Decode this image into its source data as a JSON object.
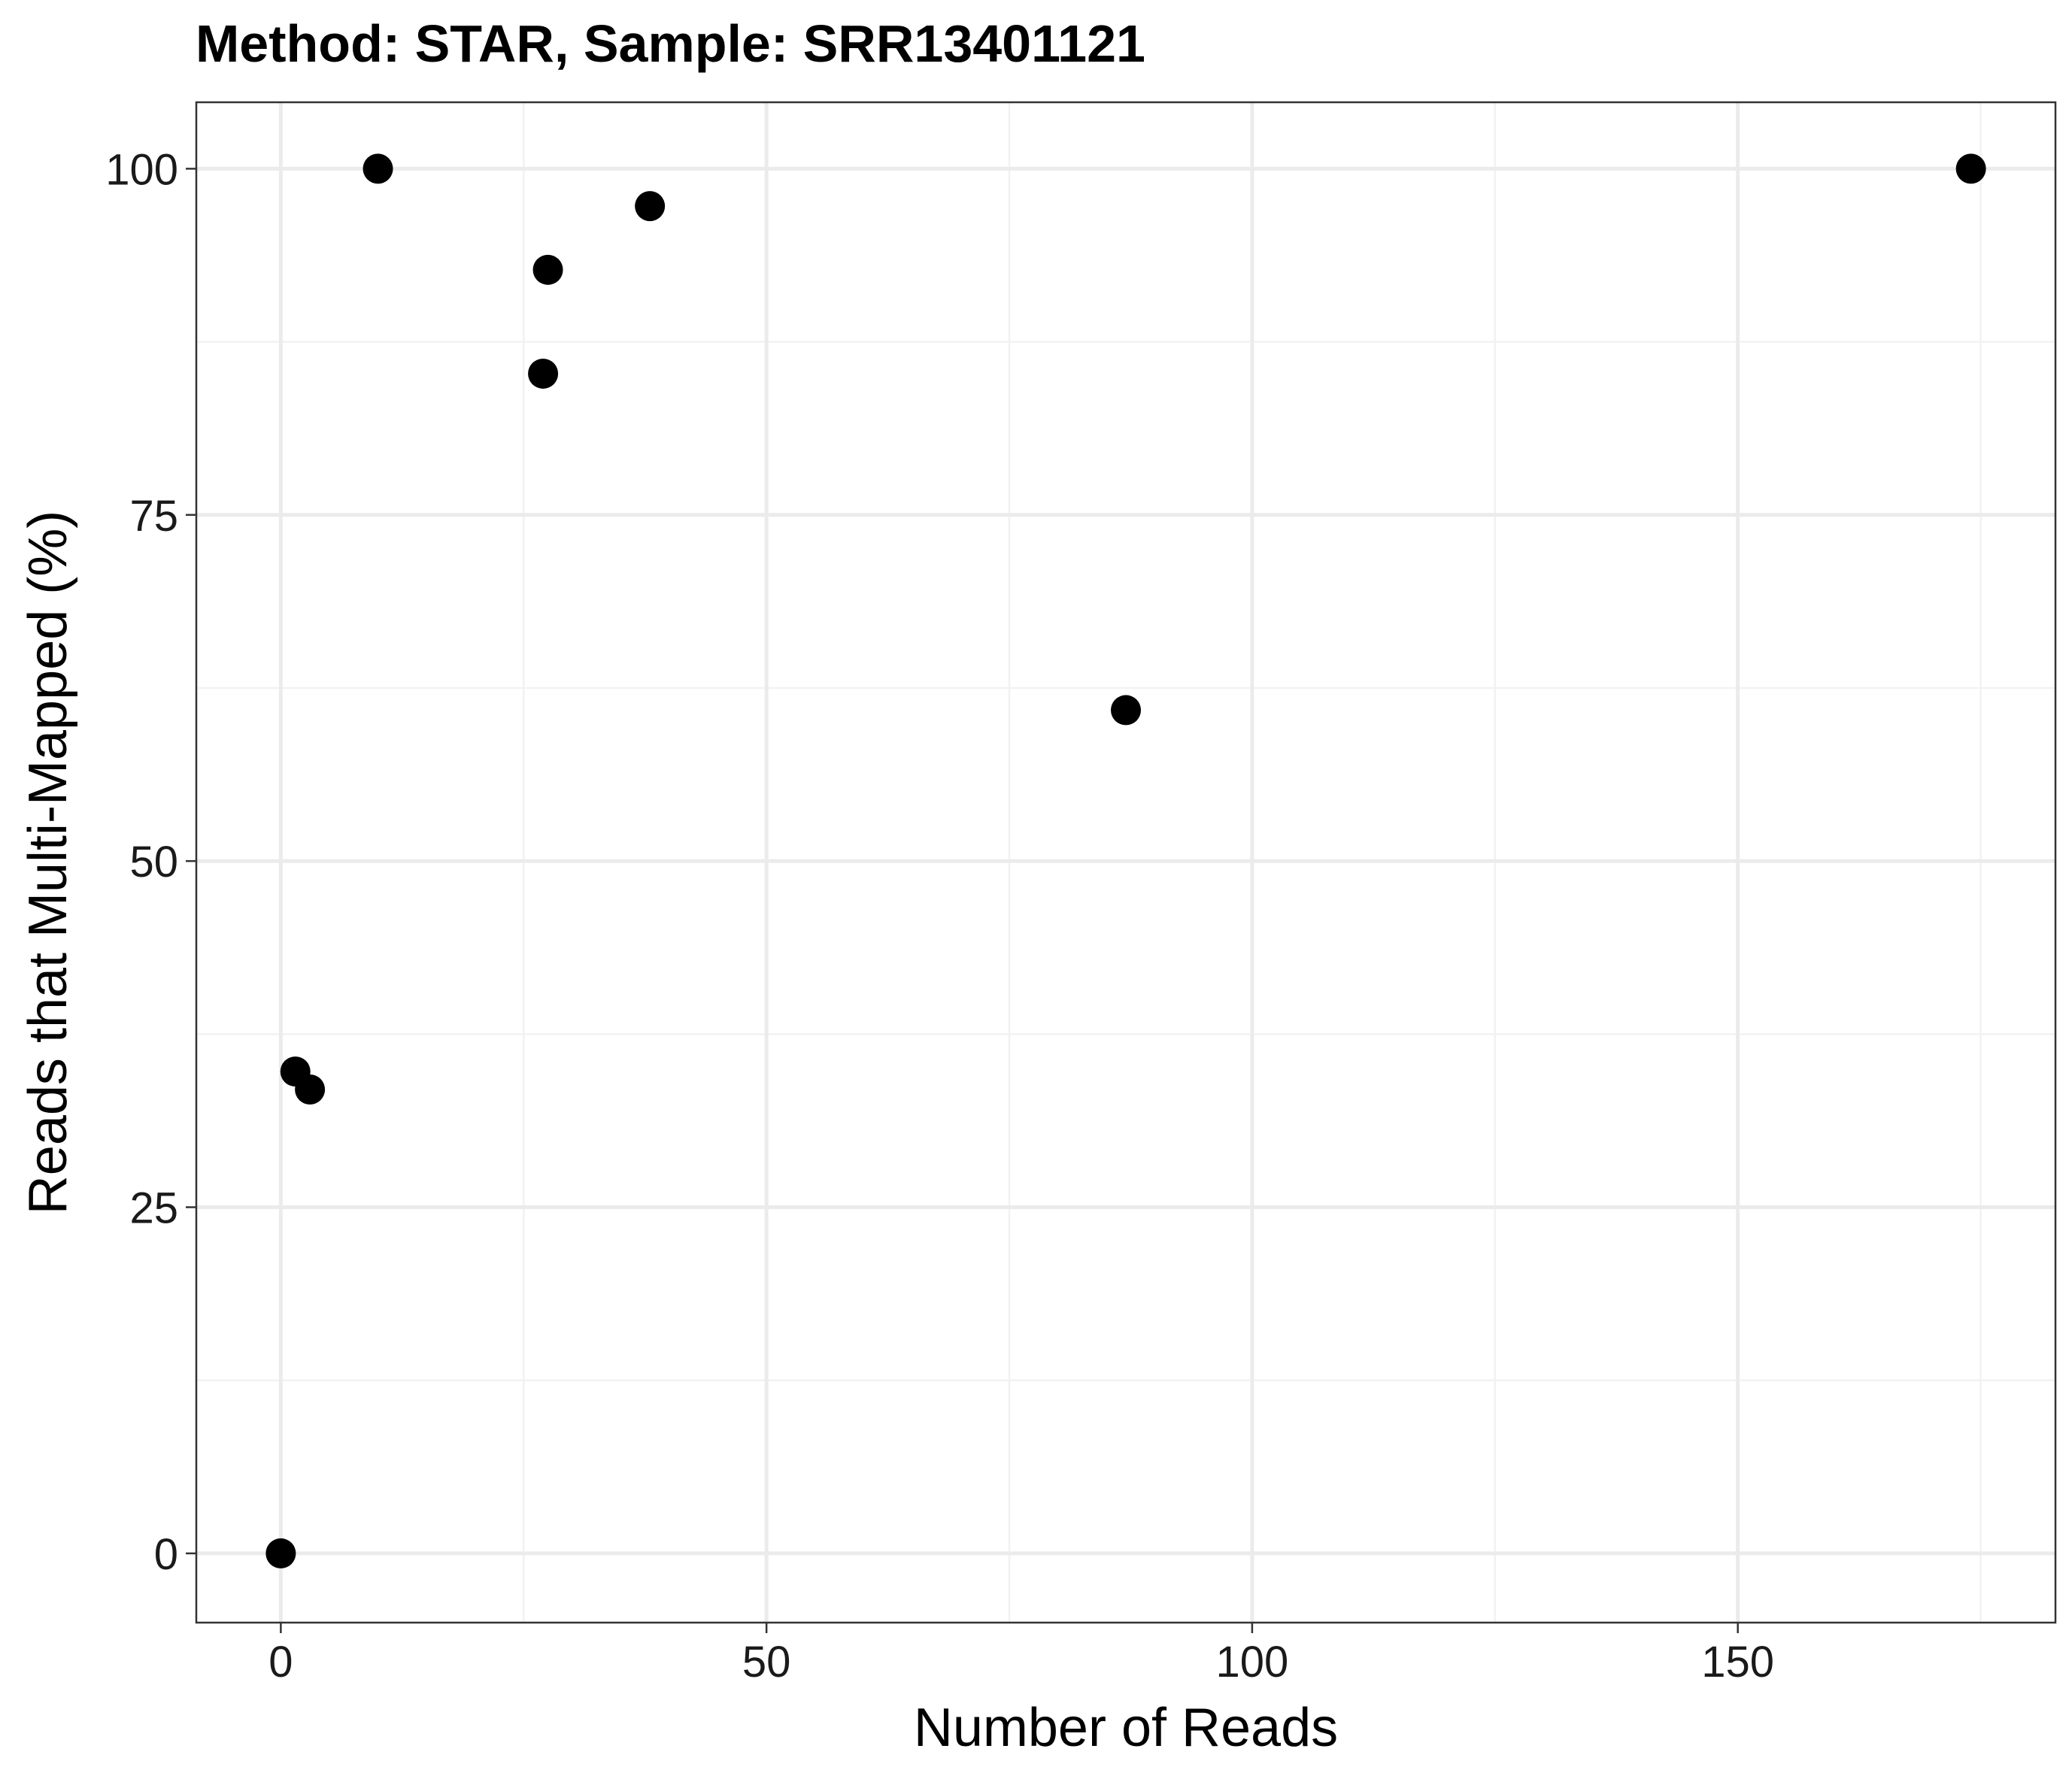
{
  "chart_data": {
    "type": "scatter",
    "title": "Method: STAR, Sample: SRR13401121",
    "xlabel": "Number of Reads",
    "ylabel": "Reads that Multi-Mapped (%)",
    "xlim": [
      -8.7,
      182.7
    ],
    "ylim": [
      -5,
      104.8
    ],
    "x_ticks": [
      0,
      50,
      100,
      150
    ],
    "y_ticks": [
      0,
      25,
      50,
      75,
      100
    ],
    "x_tick_labels": [
      "0",
      "50",
      "100",
      "150"
    ],
    "y_tick_labels": [
      "0",
      "25",
      "50",
      "75",
      "100"
    ],
    "grid": true,
    "legend": "none",
    "point_color": "#000000",
    "points": [
      {
        "x": 0,
        "y": 0
      },
      {
        "x": 1.5,
        "y": 34.8
      },
      {
        "x": 3,
        "y": 33.5
      },
      {
        "x": 10,
        "y": 100
      },
      {
        "x": 27,
        "y": 85.2
      },
      {
        "x": 27.5,
        "y": 92.7
      },
      {
        "x": 38,
        "y": 97.3
      },
      {
        "x": 87,
        "y": 60.9
      },
      {
        "x": 174,
        "y": 100
      }
    ]
  }
}
